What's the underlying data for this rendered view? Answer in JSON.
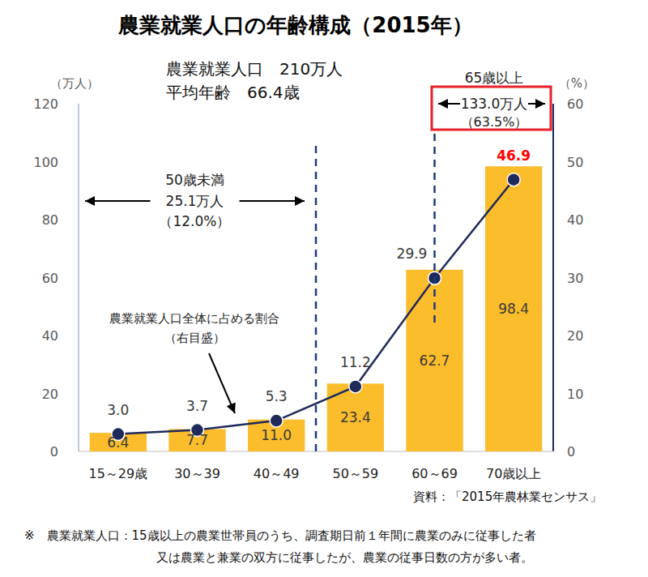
{
  "chart_data": {
    "type": "bar",
    "title": "農業就業人口の年齢構成（2015年）",
    "categories": [
      "15～29歳",
      "30～39",
      "40～49",
      "50～59",
      "60～69",
      "70歳以上"
    ],
    "series": [
      {
        "type": "bar",
        "color": "#fbbd2b",
        "values": [
          6.4,
          7.7,
          11.0,
          23.4,
          62.7,
          98.4
        ],
        "value_labels": [
          "6.4",
          "7.7",
          "11.0",
          "23.4",
          "62.7",
          "98.4"
        ]
      },
      {
        "type": "line",
        "name": "農業就業人口全体に占める割合",
        "axis": "y2",
        "color": "#1f2a5a",
        "marker": "circle",
        "values": [
          3.0,
          3.7,
          5.3,
          11.2,
          29.9,
          46.9
        ],
        "value_labels": [
          "3.0",
          "3.7",
          "5.3",
          "11.2",
          "29.9",
          "46.9"
        ]
      }
    ],
    "ylim": [
      0,
      120
    ],
    "yticks": [
      0,
      20,
      40,
      60,
      80,
      100,
      120
    ],
    "y2lim": [
      0,
      60
    ],
    "y2ticks": [
      0,
      10,
      20,
      30,
      40,
      50,
      60
    ],
    "y_label": "（万人）",
    "y2_label": "（%）",
    "grid": false,
    "data_labels": true,
    "annotations": {
      "total": "農業就業人口　210万人",
      "average_age": "平均年齢　66.4歳",
      "under50_title": "50歳未満",
      "under50_count": "25.1万人",
      "under50_share": "（12.0%）",
      "over65_title": "65歳以上",
      "over65_count": "133.0万人",
      "over65_share": "（63.5%）",
      "right_scale_note": "（右目盛）",
      "source": "資料：「2015年農林業センサス」",
      "footnote": [
        "※　農業就業人口：15歳以上の農業世帯員のうち、調査期日前１年間に農業のみに従事した者",
        "又は農業と兼業の双方に従事したが、農業の従事日数の方が多い者。"
      ]
    }
  }
}
